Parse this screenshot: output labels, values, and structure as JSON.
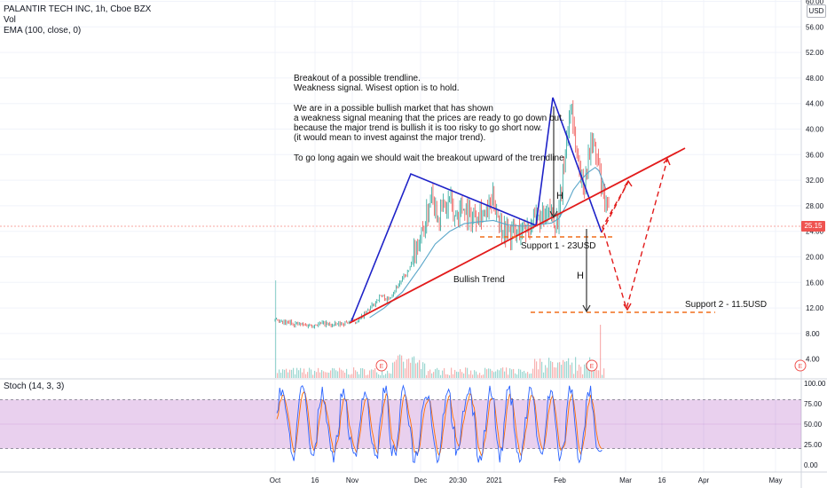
{
  "chart_data": [
    {
      "type": "candlestick",
      "title": "PALANTIR TECH INC, 1h, Cboe BZX",
      "indicators": [
        "Vol",
        "EMA (100, close, 0)"
      ],
      "currency_badge": "USD",
      "current_price": "25.15",
      "x_ticks": [
        "Oct",
        "16",
        "Nov",
        "Dec",
        "20:30",
        "2021",
        "Feb",
        "Mar",
        "16",
        "Apr",
        "May"
      ],
      "y_ticks": [
        "60.00",
        "56.00",
        "52.00",
        "48.00",
        "44.00",
        "40.00",
        "36.00",
        "32.00",
        "28.00",
        "24.00",
        "20.00",
        "16.00",
        "12.00",
        "8.00",
        "4.00"
      ],
      "ylim": [
        0,
        61
      ],
      "series": [
        {
          "name": "price",
          "color": "#26a69a",
          "points": [
            [
              0,
              10
            ],
            [
              2,
              9.6
            ],
            [
              4,
              9.7
            ],
            [
              7,
              9.4
            ],
            [
              10,
              9.3
            ],
            [
              13,
              9.6
            ],
            [
              16,
              9.3
            ],
            [
              18,
              9.5
            ],
            [
              20,
              9.8
            ],
            [
              22,
              9.9
            ],
            [
              24,
              10.6
            ],
            [
              27,
              12.5
            ],
            [
              29,
              14
            ],
            [
              31,
              13.2
            ],
            [
              33,
              15
            ],
            [
              35,
              16.5
            ],
            [
              37,
              18
            ],
            [
              39,
              22
            ],
            [
              41,
              24.5
            ],
            [
              42,
              27
            ],
            [
              43,
              31
            ],
            [
              44,
              28
            ],
            [
              45,
              26
            ],
            [
              46,
              28.5
            ],
            [
              47,
              27
            ],
            [
              48,
              29.5
            ],
            [
              49,
              26
            ],
            [
              50,
              27
            ],
            [
              52,
              28
            ],
            [
              54,
              26
            ],
            [
              56,
              27.5
            ],
            [
              58,
              26.5
            ],
            [
              60,
              29
            ],
            [
              61,
              27.5
            ],
            [
              62,
              25
            ],
            [
              64,
              24
            ],
            [
              66,
              23.5
            ],
            [
              68,
              24.5
            ],
            [
              70,
              25
            ],
            [
              72,
              26
            ],
            [
              74,
              25.5
            ],
            [
              76,
              27
            ],
            [
              77,
              25.5
            ],
            [
              78,
              26
            ],
            [
              79,
              32
            ],
            [
              80,
              38
            ],
            [
              81,
              42
            ],
            [
              81.5,
              45
            ],
            [
              82,
              40
            ],
            [
              83,
              36
            ],
            [
              84,
              33
            ],
            [
              84.7,
              30.5
            ],
            [
              85,
              32
            ],
            [
              86,
              35
            ],
            [
              87,
              39
            ],
            [
              88,
              36
            ],
            [
              89,
              34
            ],
            [
              90,
              29.5
            ],
            [
              91,
              28
            ],
            [
              92,
              26
            ]
          ]
        },
        {
          "name": "EMA (100, close, 0)",
          "color": "#5aa6c9",
          "points": [
            [
              26,
              10.5
            ],
            [
              30,
              12
            ],
            [
              35,
              14.5
            ],
            [
              40,
              18.5
            ],
            [
              44,
              22
            ],
            [
              48,
              24
            ],
            [
              52,
              25.2
            ],
            [
              56,
              25.5
            ],
            [
              60,
              25.7
            ],
            [
              64,
              25
            ],
            [
              68,
              24.8
            ],
            [
              72,
              25
            ],
            [
              76,
              25.3
            ],
            [
              78,
              26
            ],
            [
              80,
              28
            ],
            [
              82,
              30.5
            ],
            [
              84,
              32
            ],
            [
              86,
              33.2
            ],
            [
              88,
              34
            ],
            [
              89,
              33.5
            ],
            [
              90,
              32
            ],
            [
              91,
              30.5
            ]
          ]
        }
      ],
      "annotations": {
        "note": "Breakout of a possible trendline.\nWeakness signal. Wisest option is to hold.\n\nWe are in a possible bullish market that has shown\na weakness signal meaning that the prices are ready to go down but.\nbecause the major trend is bullish it is too risky to go short now.\n(it would mean to invest against the major trend).\n\nTo go long again we should wait the breakout upward of the trendline",
        "bullish_trend": "Bullish Trend",
        "support1": "Support 1 - 23USD",
        "support2": "Support 2 - 11.5USD",
        "h_label": "H",
        "earnings_marker": "E"
      }
    },
    {
      "type": "line",
      "title": "Stoch (14, 3, 3)",
      "y_ticks": [
        "100.00",
        "75.00",
        "50.00",
        "25.00",
        "0.00"
      ],
      "ylim": [
        0,
        100
      ],
      "band": [
        20,
        80
      ],
      "series": [
        {
          "name": "%K",
          "color": "#2962ff"
        },
        {
          "name": "%D",
          "color": "#ff6d00"
        }
      ]
    }
  ]
}
